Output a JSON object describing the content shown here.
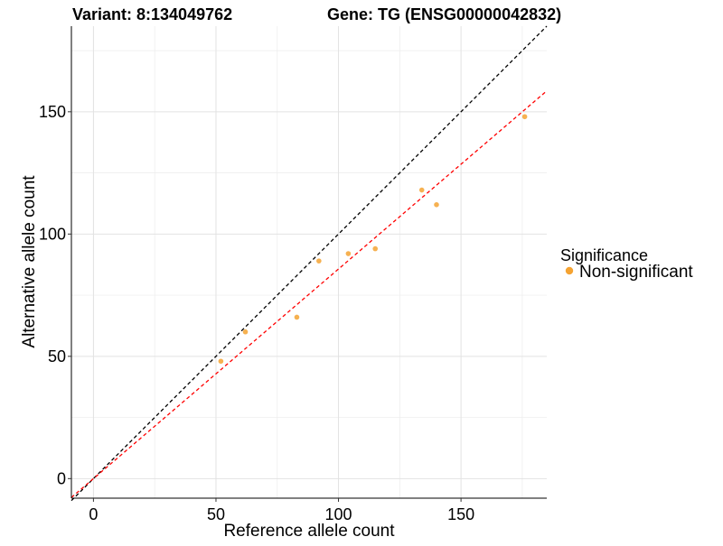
{
  "chart_data": {
    "type": "scatter",
    "title_variant": "Variant: 8:134049762",
    "title_gene": "Gene: TG (ENSG00000042832)",
    "xlabel": "Reference allele count",
    "ylabel": "Alternative allele count",
    "xlim": [
      -9,
      185
    ],
    "ylim": [
      -8,
      185
    ],
    "x_ticks": [
      0,
      50,
      100,
      150
    ],
    "y_ticks": [
      0,
      50,
      100,
      150
    ],
    "x_minor_gridlines": [
      25,
      75,
      125,
      175
    ],
    "y_minor_gridlines": [
      25,
      75,
      125,
      175
    ],
    "grid": true,
    "series": [
      {
        "name": "Non-significant",
        "color": "#f5a332",
        "x": [
          52,
          62,
          83,
          92,
          104,
          115,
          134,
          140,
          176
        ],
        "y": [
          48,
          60,
          66,
          89,
          92,
          94,
          118,
          112,
          148
        ]
      }
    ],
    "reference_lines": [
      {
        "name": "identity",
        "color": "#000000",
        "slope": 1,
        "intercept": 0,
        "style": "dashed"
      },
      {
        "name": "fit",
        "color": "#ff0000",
        "slope": 0.857,
        "intercept": 0,
        "style": "dashed"
      }
    ],
    "legend": {
      "title": "Significance",
      "placement": "right",
      "items": [
        {
          "label": "Non-significant",
          "color": "#f5a332"
        }
      ]
    }
  }
}
